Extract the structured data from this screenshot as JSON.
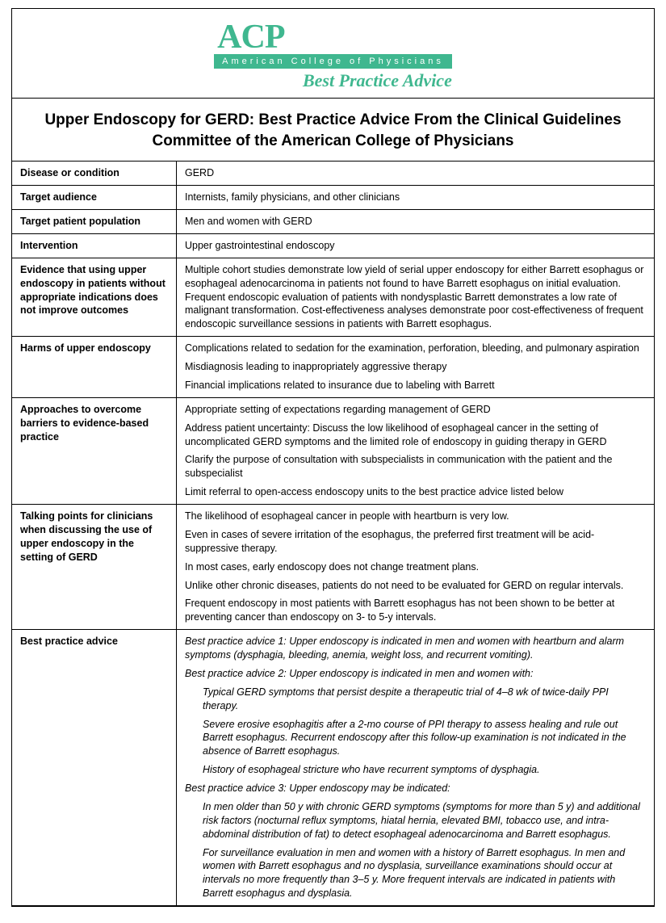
{
  "colors": {
    "accent": "#3fb78f",
    "border": "#000000",
    "text": "#000000",
    "bg": "#ffffff"
  },
  "logo": {
    "abbrev": "ACP",
    "full_spaced": "American College of Physicians",
    "subtitle": "Best Practice Advice"
  },
  "title": "Upper Endoscopy for GERD: Best Practice Advice From the Clinical Guidelines Committee of the American College of Physicians",
  "rows": {
    "disease": {
      "label": "Disease or condition",
      "value": "GERD"
    },
    "audience": {
      "label": "Target audience",
      "value": "Internists, family physicians, and other clinicians"
    },
    "population": {
      "label": "Target patient population",
      "value": "Men and women with GERD"
    },
    "intervention": {
      "label": "Intervention",
      "value": "Upper gastrointestinal endoscopy"
    },
    "evidence": {
      "label": "Evidence that using upper endoscopy in patients without appropriate indications does not improve outcomes",
      "value": "Multiple cohort studies demonstrate low yield of serial upper endoscopy for either Barrett esophagus or esophageal adenocarcinoma in patients not found to have Barrett esophagus on initial evaluation. Frequent endoscopic evaluation of patients with nondysplastic Barrett demonstrates a low rate of malignant transformation. Cost-effectiveness analyses demonstrate poor cost-effectiveness of frequent endoscopic surveillance sessions in patients with Barrett esophagus."
    },
    "harms": {
      "label": "Harms of upper endoscopy",
      "lines": [
        "Complications related to sedation for the examination, perforation, bleeding, and pulmonary aspiration",
        "Misdiagnosis leading to inappropriately aggressive therapy",
        "Financial implications related to insurance due to labeling with Barrett"
      ]
    },
    "approaches": {
      "label": "Approaches to overcome barriers to evidence-based practice",
      "lines": [
        "Appropriate setting of expectations regarding management of GERD",
        "Address patient uncertainty: Discuss the low likelihood of esophageal cancer in the setting of uncomplicated GERD symptoms and the limited role of endoscopy in guiding therapy in GERD",
        "Clarify the purpose of consultation with subspecialists in communication with the patient and the subspecialist",
        "Limit referral to open-access endoscopy units to the best practice advice listed below"
      ]
    },
    "talking": {
      "label": "Talking points for clinicians when discussing the use of upper endoscopy in the setting of GERD",
      "lines": [
        "The likelihood of esophageal cancer in people with heartburn is very low.",
        "Even in cases of severe irritation of the esophagus, the preferred first treatment will be acid-suppressive therapy.",
        "In most cases, early endoscopy does not change treatment plans.",
        "Unlike other chronic diseases, patients do not need to be evaluated for GERD on regular intervals.",
        "Frequent endoscopy in most patients with Barrett esophagus has not been shown to be better at preventing cancer than endoscopy on 3- to 5-y intervals."
      ]
    },
    "bpa": {
      "label": "Best practice advice",
      "items": [
        {
          "indent": false,
          "text": "Best practice advice 1: Upper endoscopy is indicated in men and women with heartburn and alarm symptoms (dysphagia, bleeding, anemia, weight loss, and recurrent vomiting)."
        },
        {
          "indent": false,
          "text": "Best practice advice 2: Upper endoscopy is indicated in men and women with:"
        },
        {
          "indent": true,
          "text": "Typical GERD symptoms that persist despite a therapeutic trial of 4–8 wk of twice-daily PPI therapy."
        },
        {
          "indent": true,
          "text": "Severe erosive esophagitis after a 2-mo course of PPI therapy to assess healing and rule out Barrett esophagus. Recurrent endoscopy after this follow-up examination is not indicated in the absence of Barrett esophagus."
        },
        {
          "indent": true,
          "text": "History of esophageal stricture who have recurrent symptoms of dysphagia."
        },
        {
          "indent": false,
          "text": "Best practice advice 3: Upper endoscopy may be indicated:"
        },
        {
          "indent": true,
          "text": "In men older than 50 y with chronic GERD symptoms (symptoms for more than 5 y) and additional risk factors (nocturnal reflux symptoms, hiatal hernia, elevated BMI, tobacco use, and intra-abdominal distribution of fat) to detect esophageal adenocarcinoma and Barrett esophagus."
        },
        {
          "indent": true,
          "text": "For surveillance evaluation in men and women with a history of Barrett esophagus. In men and women with Barrett esophagus and no dysplasia, surveillance examinations should occur at intervals no more frequently than 3–5 y. More frequent intervals are indicated in patients with Barrett esophagus and dysplasia."
        }
      ]
    }
  }
}
